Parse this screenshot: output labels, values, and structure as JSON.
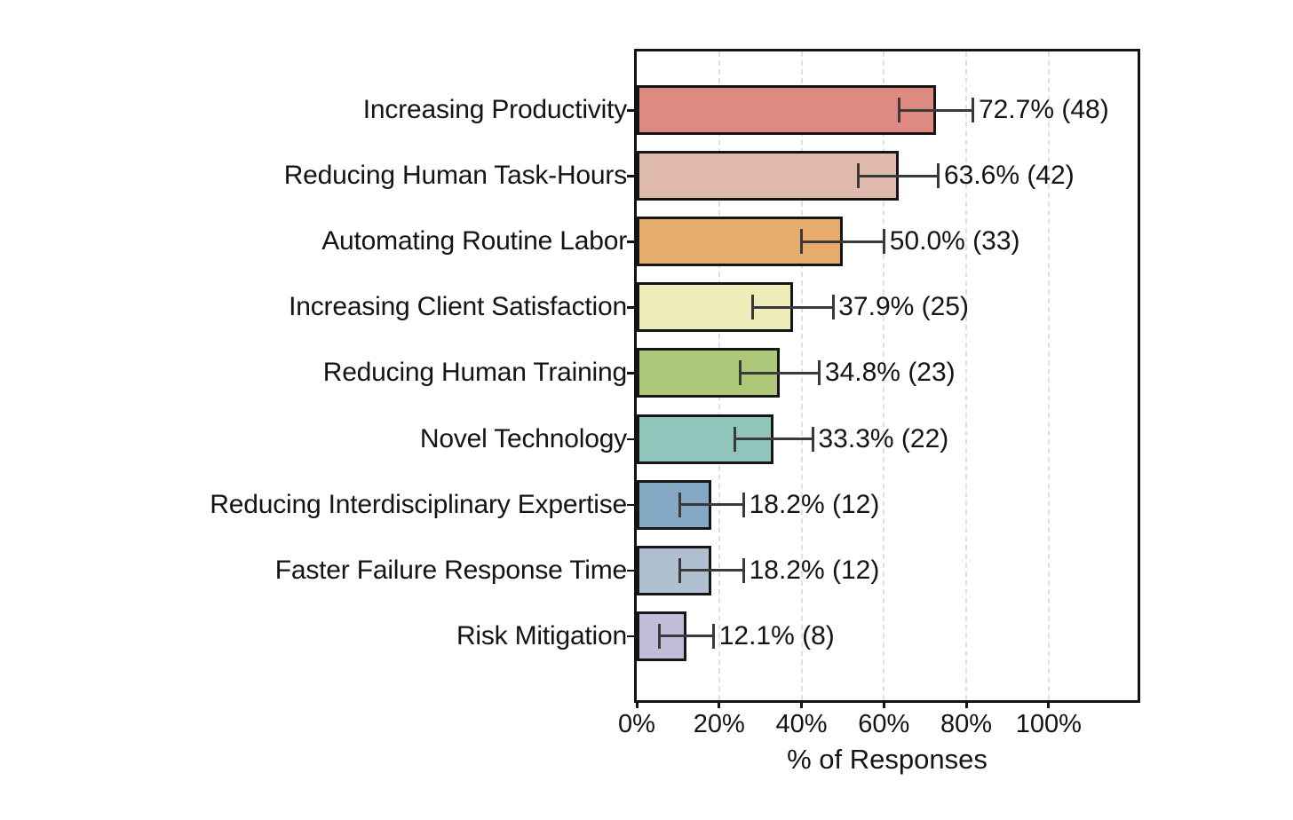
{
  "chart_data": {
    "type": "bar",
    "orientation": "horizontal",
    "title": "",
    "xlabel": "% of Responses",
    "ylabel": "",
    "xlim": [
      0,
      121.6
    ],
    "x_ticks": [
      0,
      20,
      40,
      60,
      80,
      100
    ],
    "x_tick_labels": [
      "0%",
      "20%",
      "40%",
      "60%",
      "80%",
      "100%"
    ],
    "grid": "vertical dashed gridlines at x ticks",
    "legend": "none",
    "categories": [
      "Increasing Productivity",
      "Reducing Human Task-Hours",
      "Automating Routine Labor",
      "Increasing Client Satisfaction",
      "Reducing Human Training",
      "Novel Technology",
      "Reducing Interdisciplinary Expertise",
      "Faster Failure Response Time",
      "Risk Mitigation"
    ],
    "values": [
      72.7,
      63.6,
      50.0,
      37.9,
      34.8,
      33.3,
      18.2,
      18.2,
      12.1
    ],
    "counts": [
      48,
      42,
      33,
      25,
      23,
      22,
      12,
      12,
      8
    ],
    "errors": [
      9.0,
      9.7,
      10.1,
      9.8,
      9.6,
      9.5,
      7.8,
      7.8,
      6.6
    ],
    "bar_labels": [
      "72.7% (48)",
      "63.6% (42)",
      "50.0% (33)",
      "37.9% (25)",
      "34.8% (23)",
      "33.3% (22)",
      "18.2% (12)",
      "18.2% (12)",
      "12.1% (8)"
    ],
    "bar_colors": [
      "#DE8A80",
      "#DEB9AC",
      "#E7AC6C",
      "#EEEDBA",
      "#ADC878",
      "#90C5BB",
      "#85A9C5",
      "#AEBFCF",
      "#C1BCD7"
    ],
    "bar_edge_color": "#161616",
    "error_bar_color": "#3a3a3a",
    "gridline_color": "#e0e0e0",
    "frame_color": "#141414",
    "text_color": "#141414"
  }
}
